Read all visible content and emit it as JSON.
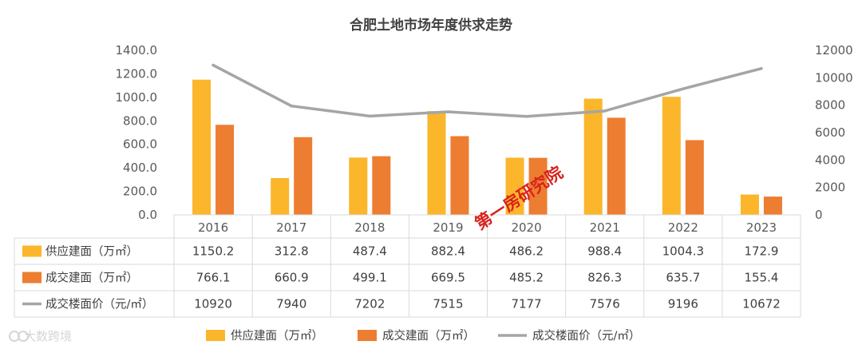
{
  "chart_data": {
    "type": "bar",
    "title": "合肥土地市场年度供求走势",
    "categories": [
      "2016",
      "2017",
      "2018",
      "2019",
      "2020",
      "2021",
      "2022",
      "2023"
    ],
    "series": [
      {
        "name": "供应建面（万㎡）",
        "type": "bar",
        "axis": "left",
        "color": "#fbb62b",
        "values": [
          "1150.2",
          "312.8",
          "487.4",
          "882.4",
          "486.2",
          "988.4",
          "1004.3",
          "172.9"
        ]
      },
      {
        "name": "成交建面（万㎡）",
        "type": "bar",
        "axis": "left",
        "color": "#ed7d31",
        "values": [
          "766.1",
          "660.9",
          "499.1",
          "669.5",
          "485.2",
          "826.3",
          "635.7",
          "155.4"
        ]
      },
      {
        "name": "成交楼面价（元/㎡）",
        "type": "line",
        "axis": "right",
        "color": "#a5a5a5",
        "values": [
          "10920",
          "7940",
          "7202",
          "7515",
          "7177",
          "7576",
          "9196",
          "10672"
        ]
      }
    ],
    "y_left": {
      "ylim": [
        0,
        1400
      ],
      "ticks": [
        "0.0",
        "200.0",
        "400.0",
        "600.0",
        "800.0",
        "1000.0",
        "1200.0",
        "1400.0"
      ]
    },
    "y_right": {
      "ylim": [
        0,
        12000
      ],
      "ticks": [
        "0",
        "2000",
        "4000",
        "6000",
        "8000",
        "10000",
        "12000"
      ]
    },
    "grid": false,
    "legend": "bottom",
    "data_table": true,
    "annotations": [
      "第一房研究院"
    ]
  },
  "watermark": {
    "icon": "dashuju-logo-icon",
    "text": "大数跨境"
  }
}
